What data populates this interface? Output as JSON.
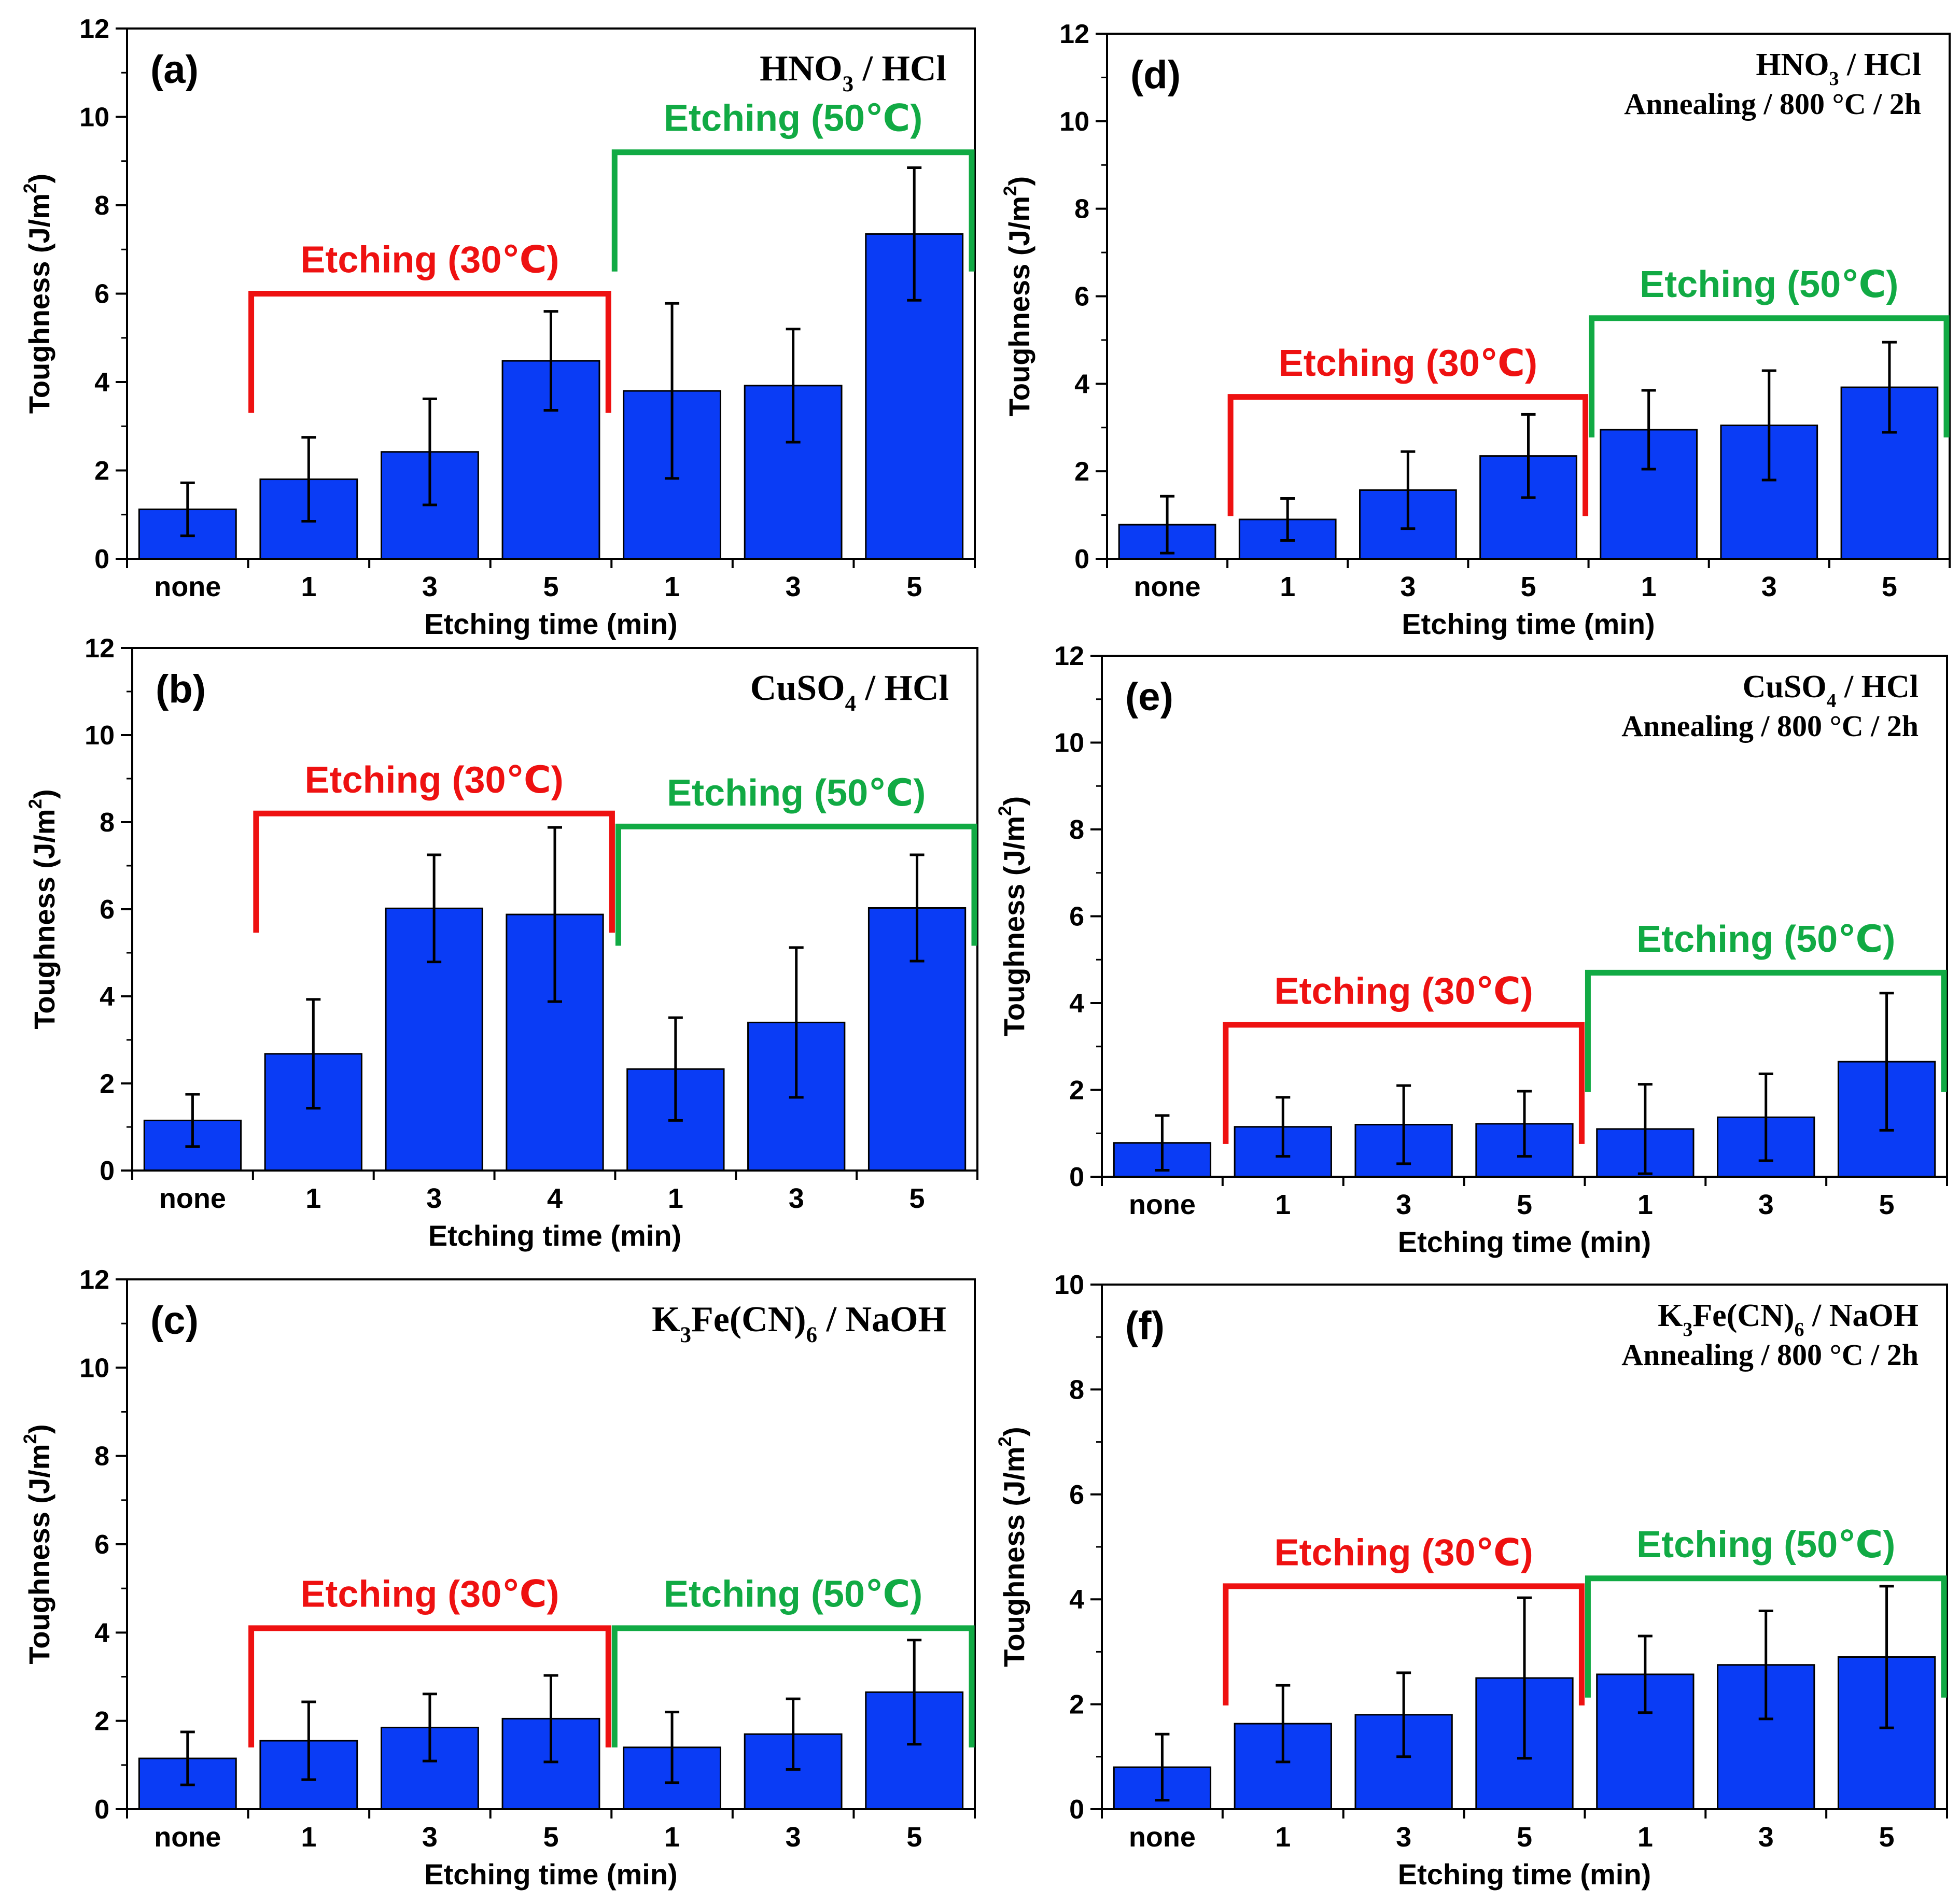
{
  "chart_data": [
    {
      "id": "a",
      "type": "bar",
      "panel_label": "(a)",
      "title_lines": [
        {
          "parts": [
            {
              "t": "HNO"
            },
            {
              "t": "3",
              "sub": true
            },
            {
              "t": " / HCl"
            }
          ]
        }
      ],
      "categories": [
        "none",
        "1",
        "3",
        "5",
        "1",
        "3",
        "5"
      ],
      "values": [
        1.12,
        1.8,
        2.42,
        4.48,
        3.8,
        3.92,
        7.35
      ],
      "errors": [
        0.6,
        0.95,
        1.2,
        1.12,
        1.98,
        1.28,
        1.5
      ],
      "xlabel": "Etching time (min)",
      "ylabel_parts": [
        {
          "t": "Toughness (J/m"
        },
        {
          "t": "2",
          "sup": true
        },
        {
          "t": ")"
        }
      ],
      "ylim": [
        0,
        12
      ],
      "yticks": [
        "0",
        "2",
        "4",
        "6",
        "8",
        "10",
        "12"
      ],
      "groups": [
        {
          "label": "Etching (30℃)",
          "color": "#ee1111",
          "start_index": 1,
          "end_index": 3,
          "level": 6.0,
          "label_level": 6.6
        },
        {
          "label": "Etching (50℃)",
          "color": "#11aa44",
          "start_index": 4,
          "end_index": 6,
          "level": 9.2,
          "label_level": 9.8
        }
      ]
    },
    {
      "id": "b",
      "type": "bar",
      "panel_label": "(b)",
      "title_lines": [
        {
          "parts": [
            {
              "t": "CuSO"
            },
            {
              "t": "4",
              "sub": true
            },
            {
              "t": " / HCl"
            }
          ]
        }
      ],
      "categories": [
        "none",
        "1",
        "3",
        "4",
        "1",
        "3",
        "5"
      ],
      "values": [
        1.15,
        2.68,
        6.02,
        5.88,
        2.33,
        3.4,
        6.03
      ],
      "errors": [
        0.6,
        1.25,
        1.23,
        2.0,
        1.18,
        1.72,
        1.22
      ],
      "xlabel": "Etching time (min)",
      "ylabel_parts": [
        {
          "t": "Toughness (J/m"
        },
        {
          "t": "2",
          "sup": true
        },
        {
          "t": ")"
        }
      ],
      "ylim": [
        0,
        12
      ],
      "yticks": [
        "0",
        "2",
        "4",
        "6",
        "8",
        "10",
        "12"
      ],
      "groups": [
        {
          "label": "Etching (30℃)",
          "color": "#ee1111",
          "start_index": 1,
          "end_index": 3,
          "level": 8.2,
          "label_level": 8.8
        },
        {
          "label": "Etching (50℃)",
          "color": "#11aa44",
          "start_index": 4,
          "end_index": 6,
          "level": 7.9,
          "label_level": 8.5
        }
      ]
    },
    {
      "id": "c",
      "type": "bar",
      "panel_label": "(c)",
      "title_lines": [
        {
          "parts": [
            {
              "t": "K"
            },
            {
              "t": "3",
              "sub": true
            },
            {
              "t": "Fe(CN)"
            },
            {
              "t": "6",
              "sub": true
            },
            {
              "t": " / NaOH"
            }
          ]
        }
      ],
      "categories": [
        "none",
        "1",
        "3",
        "5",
        "1",
        "3",
        "5"
      ],
      "values": [
        1.15,
        1.55,
        1.85,
        2.05,
        1.4,
        1.7,
        2.65
      ],
      "errors": [
        0.6,
        0.88,
        0.76,
        0.98,
        0.8,
        0.8,
        1.18
      ],
      "xlabel": "Etching time (min)",
      "ylabel_parts": [
        {
          "t": "Toughness (J/m"
        },
        {
          "t": "2",
          "sup": true
        },
        {
          "t": ")"
        }
      ],
      "ylim": [
        0,
        12
      ],
      "yticks": [
        "0",
        "2",
        "4",
        "6",
        "8",
        "10",
        "12"
      ],
      "groups": [
        {
          "label": "Etching (30℃)",
          "color": "#ee1111",
          "start_index": 1,
          "end_index": 3,
          "level": 4.1,
          "label_level": 4.7
        },
        {
          "label": "Etching (50℃)",
          "color": "#11aa44",
          "start_index": 4,
          "end_index": 6,
          "level": 4.1,
          "label_level": 4.7
        }
      ]
    },
    {
      "id": "d",
      "type": "bar",
      "panel_label": "(d)",
      "title_lines": [
        {
          "parts": [
            {
              "t": "HNO"
            },
            {
              "t": "3",
              "sub": true
            },
            {
              "t": " / HCl"
            }
          ]
        },
        {
          "parts": [
            {
              "t": "Annealing / 800 °C / 2h"
            }
          ]
        }
      ],
      "categories": [
        "none",
        "1",
        "3",
        "5",
        "1",
        "3",
        "5"
      ],
      "values": [
        0.78,
        0.9,
        1.57,
        2.35,
        2.95,
        3.05,
        3.92
      ],
      "errors": [
        0.65,
        0.48,
        0.88,
        0.95,
        0.9,
        1.25,
        1.03
      ],
      "xlabel": "Etching time (min)",
      "ylabel_parts": [
        {
          "t": "Toughness (J/m"
        },
        {
          "t": "2",
          "sup": true
        },
        {
          "t": ")"
        }
      ],
      "ylim": [
        0,
        12
      ],
      "yticks": [
        "0",
        "2",
        "4",
        "6",
        "8",
        "10",
        "12"
      ],
      "groups": [
        {
          "label": "Etching (30℃)",
          "color": "#ee1111",
          "start_index": 1,
          "end_index": 3,
          "level": 3.7,
          "label_level": 4.3
        },
        {
          "label": "Etching (50℃)",
          "color": "#11aa44",
          "start_index": 4,
          "end_index": 6,
          "level": 5.5,
          "label_level": 6.1
        }
      ]
    },
    {
      "id": "e",
      "type": "bar",
      "panel_label": "(e)",
      "title_lines": [
        {
          "parts": [
            {
              "t": "CuSO"
            },
            {
              "t": "4",
              "sub": true
            },
            {
              "t": " / HCl"
            }
          ]
        },
        {
          "parts": [
            {
              "t": "Annealing / 800 °C / 2h"
            }
          ]
        }
      ],
      "categories": [
        "none",
        "1",
        "3",
        "5",
        "1",
        "3",
        "5"
      ],
      "values": [
        0.78,
        1.15,
        1.2,
        1.22,
        1.1,
        1.37,
        2.65
      ],
      "errors": [
        0.63,
        0.68,
        0.9,
        0.75,
        1.03,
        1.0,
        1.58
      ],
      "xlabel": "Etching time (min)",
      "ylabel_parts": [
        {
          "t": "Toughness (J/m"
        },
        {
          "t": "2",
          "sup": true
        },
        {
          "t": ")"
        }
      ],
      "ylim": [
        0,
        12
      ],
      "yticks": [
        "0",
        "2",
        "4",
        "6",
        "8",
        "10",
        "12"
      ],
      "groups": [
        {
          "label": "Etching (30℃)",
          "color": "#ee1111",
          "start_index": 1,
          "end_index": 3,
          "level": 3.5,
          "label_level": 4.1
        },
        {
          "label": "Etching (50℃)",
          "color": "#11aa44",
          "start_index": 4,
          "end_index": 6,
          "level": 4.7,
          "label_level": 5.3
        }
      ]
    },
    {
      "id": "f",
      "type": "bar",
      "panel_label": "(f)",
      "title_lines": [
        {
          "parts": [
            {
              "t": "K"
            },
            {
              "t": "3",
              "sub": true
            },
            {
              "t": "Fe(CN)"
            },
            {
              "t": "6",
              "sub": true
            },
            {
              "t": " / NaOH"
            }
          ]
        },
        {
          "parts": [
            {
              "t": "Annealing / 800 °C / 2h"
            }
          ]
        }
      ],
      "categories": [
        "none",
        "1",
        "3",
        "5",
        "1",
        "3",
        "5"
      ],
      "values": [
        0.8,
        1.63,
        1.8,
        2.5,
        2.57,
        2.75,
        2.9
      ],
      "errors": [
        0.63,
        0.73,
        0.8,
        1.53,
        0.73,
        1.03,
        1.35
      ],
      "xlabel": "Etching time (min)",
      "ylabel_parts": [
        {
          "t": "Toughness (J/m"
        },
        {
          "t": "2",
          "sup": true
        },
        {
          "t": ")"
        }
      ],
      "ylim": [
        0,
        10
      ],
      "yticks": [
        "0",
        "2",
        "4",
        "6",
        "8",
        "10"
      ],
      "groups": [
        {
          "label": "Etching (30℃)",
          "color": "#ee1111",
          "start_index": 1,
          "end_index": 3,
          "level": 4.25,
          "label_level": 4.75
        },
        {
          "label": "Etching (50℃)",
          "color": "#11aa44",
          "start_index": 4,
          "end_index": 6,
          "level": 4.4,
          "label_level": 4.9
        }
      ]
    }
  ],
  "colors": {
    "bar_fill": "#0a3cf5",
    "bar_stroke": "#000000",
    "axis": "#000000"
  }
}
